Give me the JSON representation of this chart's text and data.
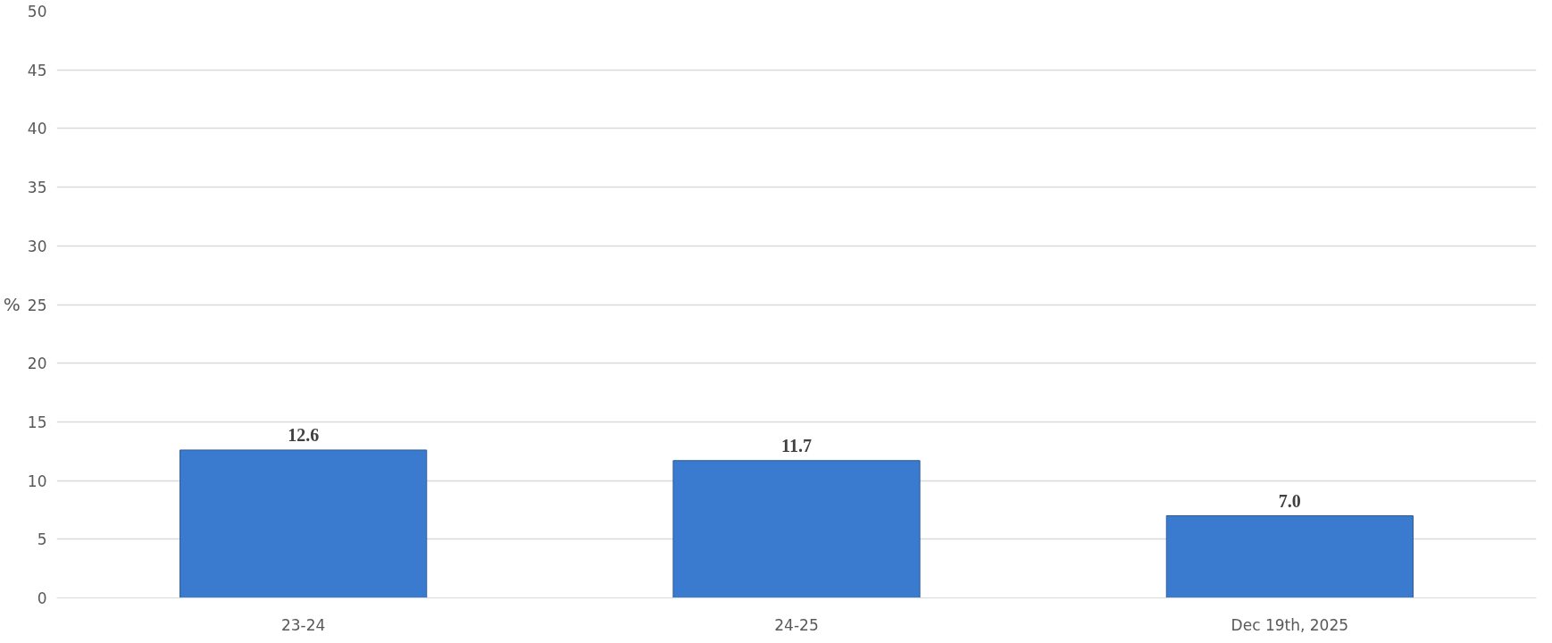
{
  "chart_data": {
    "type": "bar",
    "ylabel": "%",
    "categories": [
      "23-24",
      "24-25",
      "Dec 19th, 2025"
    ],
    "series": [
      {
        "color": "#3a7bd0",
        "values": [
          12.6,
          11.7,
          7.0
        ],
        "value_labels": [
          "12.6",
          "11.7",
          "7.0"
        ]
      }
    ],
    "ylim": [
      0,
      50
    ],
    "yticks": [
      0,
      5,
      10,
      15,
      20,
      25,
      30,
      35,
      40,
      45,
      50
    ],
    "grid": "y"
  }
}
